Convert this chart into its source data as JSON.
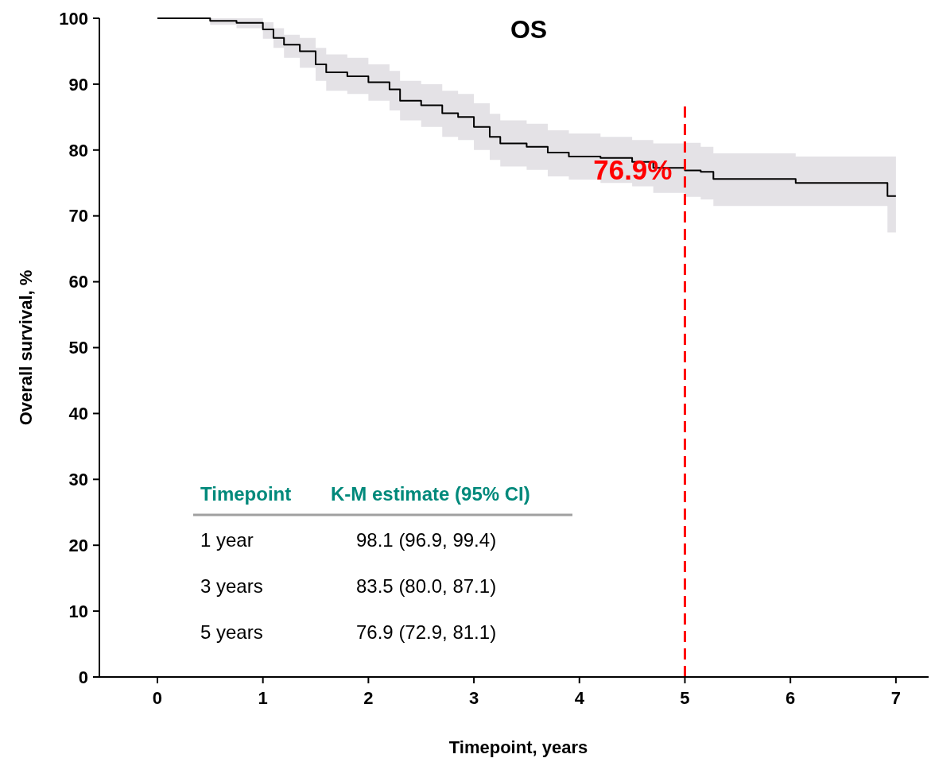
{
  "chart_data": {
    "type": "step",
    "title": "OS",
    "xlabel": "Timepoint, years",
    "ylabel": "Overall survival, %",
    "xlim": [
      -0.55,
      7.31
    ],
    "ylim": [
      0,
      100
    ],
    "xticks": [
      0,
      1,
      2,
      3,
      4,
      5,
      6,
      7
    ],
    "yticks": [
      0,
      10,
      20,
      30,
      40,
      50,
      60,
      70,
      80,
      90,
      100
    ],
    "grid": false,
    "series": [
      {
        "color": "#000000",
        "x": [
          0,
          0.5,
          0.75,
          1.0,
          1.1,
          1.2,
          1.35,
          1.5,
          1.6,
          1.8,
          2.0,
          2.2,
          2.3,
          2.5,
          2.7,
          2.85,
          3.0,
          3.15,
          3.25,
          3.5,
          3.7,
          3.9,
          4.2,
          4.5,
          4.7,
          5.0,
          5.15,
          5.27,
          6.05,
          6.92,
          7.0
        ],
        "values": [
          100,
          99.6,
          99.3,
          98.3,
          97,
          96,
          95,
          93,
          91.8,
          91.2,
          90.3,
          89.2,
          87.5,
          86.8,
          85.6,
          85,
          83.5,
          82,
          81,
          80.5,
          79.6,
          79,
          78.8,
          78.2,
          77.3,
          76.9,
          76.7,
          75.6,
          75,
          73,
          73
        ],
        "lower": [
          100,
          99,
          98.5,
          96.9,
          95.5,
          94,
          92.5,
          90.5,
          89,
          88.5,
          87.5,
          86,
          84.5,
          83.5,
          82,
          81.5,
          80,
          78.5,
          77.5,
          77,
          76,
          75.5,
          75,
          74.5,
          73.5,
          72.9,
          72.5,
          71.5,
          71.5,
          67.5,
          67.5
        ],
        "upper": [
          100,
          100,
          100,
          99.4,
          98.5,
          97.5,
          97,
          95.5,
          94.5,
          94,
          93,
          92,
          90.5,
          90,
          89,
          88.5,
          87.1,
          85.5,
          84.5,
          84,
          83,
          82.5,
          82,
          81.5,
          81,
          81.1,
          80.5,
          79.5,
          79,
          79,
          79
        ]
      }
    ],
    "ref_lines": [
      {
        "axis": "x",
        "value": 5,
        "color": "#ff0000",
        "line_style": "dashed"
      }
    ],
    "annotations": [
      {
        "text": "76.9%",
        "x": 5,
        "y": 76.9
      },
      "Timepoint",
      "K-M estimate (95% CI)",
      "1 year",
      "98.1 (96.9, 99.4)",
      "3 years",
      "83.5 (80.0, 87.1)",
      "5 years",
      "76.9 (72.9, 81.1)"
    ]
  }
}
